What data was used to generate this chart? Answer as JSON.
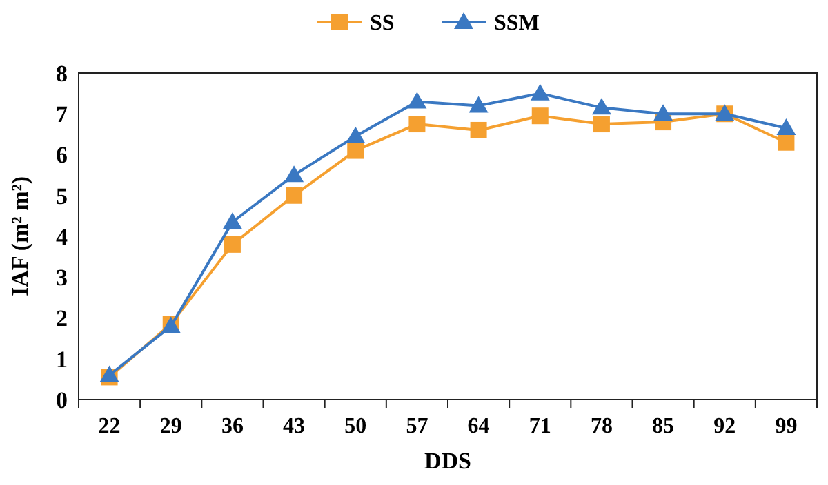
{
  "chart_data": {
    "type": "line",
    "xlabel": "DDS",
    "ylabel": "IAF (m² m²)",
    "categories": [
      "22",
      "29",
      "36",
      "43",
      "50",
      "57",
      "64",
      "71",
      "78",
      "85",
      "92",
      "99"
    ],
    "series": [
      {
        "name": "SS",
        "color": "#f5a030",
        "marker": "square",
        "values": [
          0.55,
          1.85,
          3.8,
          5.0,
          6.1,
          6.75,
          6.6,
          6.95,
          6.75,
          6.8,
          7.0,
          6.3
        ]
      },
      {
        "name": "SSM",
        "color": "#3a78c2",
        "marker": "triangle",
        "values": [
          0.6,
          1.8,
          4.35,
          5.5,
          6.45,
          7.3,
          7.2,
          7.5,
          7.15,
          7.0,
          7.0,
          6.65
        ]
      }
    ],
    "ylim": [
      0,
      8
    ],
    "yticks": [
      0,
      1,
      2,
      3,
      4,
      5,
      6,
      7,
      8
    ],
    "grid": false,
    "legend": "top",
    "line_style": "solid"
  }
}
